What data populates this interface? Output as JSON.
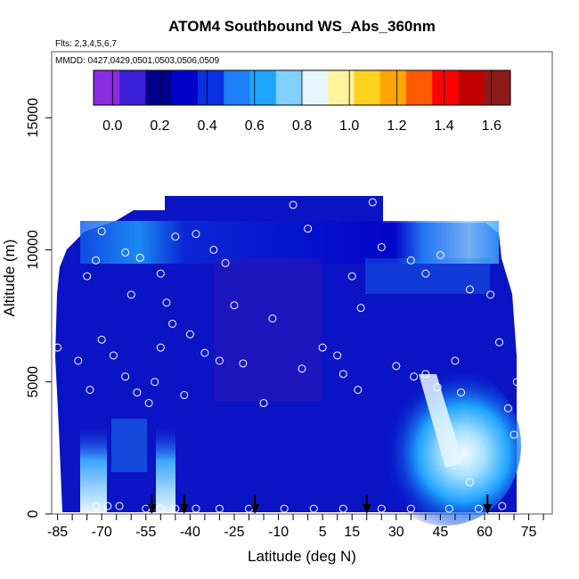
{
  "chart_data": {
    "type": "heatmap",
    "title": "ATOM4 Southbound WS_Abs_360nm",
    "flights_label": "Flts: 2,3,4,5,6,7",
    "dates_label": "MMDD: 0427,0429,0501,0503,0506,0509",
    "xlabel": "Latitude (deg N)",
    "ylabel": "Altitude (m)",
    "xlim": [
      -87,
      83
    ],
    "ylim": [
      0,
      17500
    ],
    "x_ticks": [
      -85,
      -70,
      -55,
      -40,
      -25,
      -10,
      5,
      15,
      30,
      45,
      60,
      75
    ],
    "x_minor_ticks": [
      -80,
      -75,
      -65,
      -60,
      -50,
      -45,
      -35,
      -30,
      -20,
      -15,
      -5,
      0,
      10,
      20,
      25,
      35,
      40,
      50,
      55,
      65,
      70,
      80
    ],
    "y_ticks": [
      0,
      5000,
      10000,
      15000
    ],
    "colorbar": {
      "ticks": [
        0.0,
        0.2,
        0.4,
        0.6,
        0.8,
        1.0,
        1.2,
        1.4,
        1.6
      ],
      "tick_labels": [
        "0.0",
        "0.2",
        "0.4",
        "0.6",
        "0.8",
        "1.0",
        "1.2",
        "1.4",
        "1.6"
      ],
      "range": [
        -0.08,
        1.68
      ],
      "colors": [
        "#8a2be2",
        "#3b1fd6",
        "#00008b",
        "#0000c8",
        "#0a2fe0",
        "#1e7ef5",
        "#1ea3ff",
        "#7fd0ff",
        "#e6f6ff",
        "#fff3a0",
        "#ffd21e",
        "#ffa500",
        "#ff5a00",
        "#ff0000",
        "#c00000",
        "#8b1a1a"
      ]
    },
    "field_hint": "absorption coefficient field, mostly 0.05-0.5; enhanced 0.5-0.8 near 40-55N below 5000 m, -60 to -50 near surface, and 0-10 band between 9000-11000 m",
    "descent_markers_lat": [
      -53,
      -42,
      -18,
      20,
      61
    ],
    "sample_points": [
      {
        "lat": -75,
        "alt": 9000
      },
      {
        "lat": -72,
        "alt": 9600
      },
      {
        "lat": -70,
        "alt": 10700
      },
      {
        "lat": -68,
        "alt": 11500
      },
      {
        "lat": -66,
        "alt": 12000
      },
      {
        "lat": -62,
        "alt": 9900
      },
      {
        "lat": -60,
        "alt": 8300
      },
      {
        "lat": -57,
        "alt": 9700
      },
      {
        "lat": -54,
        "alt": 11900
      },
      {
        "lat": -50,
        "alt": 9100
      },
      {
        "lat": -48,
        "alt": 8000
      },
      {
        "lat": -45,
        "alt": 10500
      },
      {
        "lat": -40,
        "alt": 6800
      },
      {
        "lat": -35,
        "alt": 6100
      },
      {
        "lat": -30,
        "alt": 5800
      },
      {
        "lat": -25,
        "alt": 7900
      },
      {
        "lat": -20,
        "alt": 12300
      },
      {
        "lat": -12,
        "alt": 7400
      },
      {
        "lat": -5,
        "alt": 11700
      },
      {
        "lat": 0,
        "alt": 10800
      },
      {
        "lat": 5,
        "alt": 6300
      },
      {
        "lat": 10,
        "alt": 6000
      },
      {
        "lat": 15,
        "alt": 9000
      },
      {
        "lat": 18,
        "alt": 7800
      },
      {
        "lat": 22,
        "alt": 11800
      },
      {
        "lat": 25,
        "alt": 10100
      },
      {
        "lat": 30,
        "alt": 5600
      },
      {
        "lat": 35,
        "alt": 9600
      },
      {
        "lat": 40,
        "alt": 5300
      },
      {
        "lat": 45,
        "alt": 9800
      },
      {
        "lat": 50,
        "alt": 5800
      },
      {
        "lat": 55,
        "alt": 8500
      },
      {
        "lat": 60,
        "alt": 11400
      },
      {
        "lat": 65,
        "alt": 6500
      },
      {
        "lat": 68,
        "alt": 4000
      },
      {
        "lat": -78,
        "alt": 5800
      },
      {
        "lat": -74,
        "alt": 4700
      },
      {
        "lat": -70,
        "alt": 6600
      },
      {
        "lat": -66,
        "alt": 6000
      },
      {
        "lat": -62,
        "alt": 5200
      },
      {
        "lat": -58,
        "alt": 4600
      },
      {
        "lat": -52,
        "alt": 5000
      },
      {
        "lat": -50,
        "alt": 6300
      },
      {
        "lat": -46,
        "alt": 7200
      },
      {
        "lat": -85,
        "alt": 6300
      },
      {
        "lat": -72,
        "alt": 300
      },
      {
        "lat": -68,
        "alt": 300
      },
      {
        "lat": -64,
        "alt": 300
      },
      {
        "lat": -55,
        "alt": 200
      },
      {
        "lat": -50,
        "alt": 200
      },
      {
        "lat": -45,
        "alt": 200
      },
      {
        "lat": -38,
        "alt": 200
      },
      {
        "lat": -30,
        "alt": 200
      },
      {
        "lat": -20,
        "alt": 200
      },
      {
        "lat": -8,
        "alt": 200
      },
      {
        "lat": 2,
        "alt": 200
      },
      {
        "lat": 12,
        "alt": 200
      },
      {
        "lat": 25,
        "alt": 200
      },
      {
        "lat": 35,
        "alt": 200
      },
      {
        "lat": 48,
        "alt": 200
      },
      {
        "lat": 58,
        "alt": 200
      },
      {
        "lat": 66,
        "alt": 300
      },
      {
        "lat": 70,
        "alt": 3000
      },
      {
        "lat": 71,
        "alt": 5000
      },
      {
        "lat": 55,
        "alt": 1200
      },
      {
        "lat": 52,
        "alt": 4600
      },
      {
        "lat": 44,
        "alt": 4800
      },
      {
        "lat": 36,
        "alt": 5200
      },
      {
        "lat": 17,
        "alt": 4700
      },
      {
        "lat": 12,
        "alt": 5300
      },
      {
        "lat": -2,
        "alt": 5500
      },
      {
        "lat": -15,
        "alt": 4200
      },
      {
        "lat": -22,
        "alt": 5700
      },
      {
        "lat": -42,
        "alt": 4500
      },
      {
        "lat": -54,
        "alt": 4200
      },
      {
        "lat": 62,
        "alt": 8300
      },
      {
        "lat": 40,
        "alt": 9100
      },
      {
        "lat": -28,
        "alt": 9500
      },
      {
        "lat": -38,
        "alt": 10600
      },
      {
        "lat": -32,
        "alt": 10000
      }
    ]
  }
}
